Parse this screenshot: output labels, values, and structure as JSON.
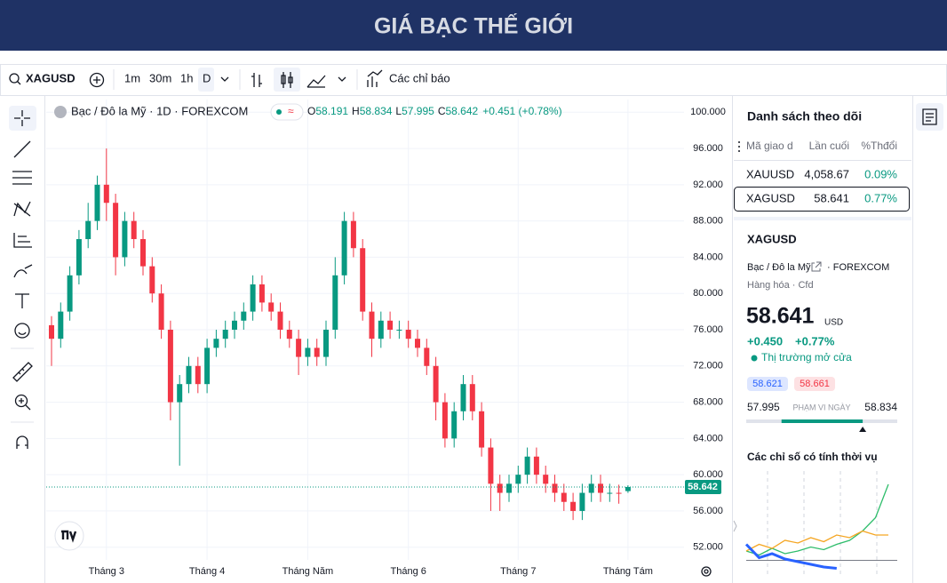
{
  "header": {
    "title": "GIÁ BẠC THẾ GIỚI"
  },
  "toolbar": {
    "symbol": "XAGUSD",
    "intervals": [
      "1m",
      "30m",
      "1h",
      "D"
    ],
    "indicators": "Các chỉ báo"
  },
  "legend": {
    "name": "Bạc / Đô la Mỹ · 1D · FOREXCOM",
    "o": "O",
    "h": "H",
    "l": "L",
    "c": "C",
    "change": "+0.451 (+0.78%)"
  },
  "chart_data": {
    "type": "candlestick",
    "categories": [
      null,
      null,
      null,
      null,
      null,
      null,
      "Tháng 3",
      null,
      null,
      null,
      null,
      null,
      null,
      null,
      null,
      null,
      null,
      "Tháng 4",
      null,
      null,
      null,
      null,
      null,
      null,
      null,
      null,
      null,
      null,
      "Tháng Năm",
      null,
      null,
      null,
      null,
      null,
      null,
      null,
      null,
      null,
      null,
      "Tháng 6",
      null,
      null,
      null,
      null,
      null,
      null,
      null,
      null,
      null,
      null,
      null,
      "Tháng 7",
      null,
      null,
      null,
      null,
      null,
      null,
      null,
      null,
      null,
      null,
      null,
      "Tháng Tám"
    ],
    "open": [
      76.5,
      75,
      78,
      82,
      86,
      88,
      92,
      90,
      84,
      88,
      86,
      83,
      80,
      76,
      68,
      70,
      72,
      70,
      74,
      75,
      76,
      77,
      78,
      81,
      79,
      78,
      76,
      75,
      73,
      74,
      73,
      76,
      82,
      88,
      85,
      78,
      75,
      77,
      76,
      76,
      75,
      74,
      72,
      68,
      64,
      67,
      70,
      67,
      63,
      59,
      58,
      59,
      60,
      62,
      60,
      59,
      58,
      57,
      56,
      58,
      59,
      58,
      58,
      58.191
    ],
    "high": [
      77.5,
      79,
      83,
      87,
      90,
      93,
      96,
      91,
      89,
      89,
      87,
      84,
      81,
      77,
      71,
      73,
      73,
      75,
      76,
      77,
      78,
      79,
      82,
      82,
      80,
      79,
      77,
      76,
      75,
      75,
      77,
      84,
      89,
      89,
      86,
      79,
      78,
      78,
      77,
      77,
      76,
      75,
      73,
      69,
      68,
      71,
      71,
      68,
      64,
      60,
      60,
      61,
      63,
      63,
      61,
      60,
      59,
      58,
      59,
      60,
      60,
      59,
      58.9,
      58.834
    ],
    "low": [
      72,
      74,
      77,
      81,
      85,
      87,
      88,
      82,
      83,
      85,
      82,
      79,
      75,
      66,
      61,
      69,
      69,
      69,
      73,
      74,
      75,
      76,
      77,
      78,
      77,
      75,
      74,
      71,
      72,
      72,
      72,
      75,
      81,
      84,
      77,
      73,
      74,
      75,
      75,
      74,
      73,
      71,
      66,
      63,
      63,
      66,
      66,
      62,
      56,
      56,
      57,
      58,
      59,
      59,
      58,
      57,
      56,
      55,
      55,
      57,
      57,
      57,
      56.8,
      57.995
    ],
    "close": [
      75,
      78,
      82,
      86,
      88,
      92,
      90,
      84,
      88,
      86,
      83,
      80,
      76,
      68,
      70,
      72,
      70,
      74,
      75,
      76,
      77,
      78,
      81,
      79,
      78,
      76,
      75,
      73,
      74,
      73,
      76,
      82,
      88,
      85,
      78,
      75,
      77,
      76,
      76,
      75,
      74,
      72,
      68,
      64,
      67,
      70,
      67,
      63,
      59,
      58,
      59,
      60,
      62,
      60,
      59,
      58,
      57,
      56,
      58,
      59,
      58,
      58,
      57.9,
      58.642
    ],
    "up_color": "#089981",
    "down_color": "#f23645",
    "ylim": [
      50.6,
      101.4
    ],
    "yticks": [
      {
        "value": 52,
        "label": "52.000"
      },
      {
        "value": 56,
        "label": "56.000"
      },
      {
        "value": 60,
        "label": "60.000"
      },
      {
        "value": 64,
        "label": "64.000"
      },
      {
        "value": 68,
        "label": "68.000"
      },
      {
        "value": 72,
        "label": "72.000"
      },
      {
        "value": 76,
        "label": "76.000"
      },
      {
        "value": 80,
        "label": "80.000"
      },
      {
        "value": 84,
        "label": "84.000"
      },
      {
        "value": 88,
        "label": "88.000"
      },
      {
        "value": 92,
        "label": "92.000"
      },
      {
        "value": 96,
        "label": "96.000"
      },
      {
        "value": 100,
        "label": "100.000"
      }
    ],
    "grid": true
  },
  "watchlist": {
    "title": "Danh sách theo dõi",
    "columns": [
      "Mã giao d",
      "Lần cuối",
      "%Thđổi"
    ],
    "rows": [
      [
        "XAUUSD",
        "4,058.67",
        "0.09%"
      ],
      [
        "XAGUSD",
        "58.641",
        "0.77%"
      ]
    ]
  },
  "details": {
    "symbol": "XAGUSD",
    "name": "Bạc / Đô la Mỹ",
    "exchange": "· FOREXCOM",
    "kind": "Hàng hóa · Cfd",
    "price": "58.641",
    "currency": "USD",
    "change": "+0.450",
    "change_pct": "+0.77%",
    "status": "Thị trường mở cửa",
    "bid": "58.621",
    "ask": "58.661",
    "range_label": "PHẠM VI NGÀY"
  },
  "seasonal": {
    "title": "Các chỉ số có tính thời vụ",
    "type": "line",
    "ylim": [
      -20,
      60
    ],
    "series": [
      {
        "color": "#2ebd6b",
        "values": [
          0,
          -3,
          2,
          -2,
          0,
          3,
          1,
          5,
          8,
          15,
          25,
          50
        ]
      },
      {
        "color": "#f5a623",
        "values": [
          0,
          5,
          2,
          8,
          6,
          10,
          7,
          12,
          10,
          15,
          12,
          12
        ]
      },
      {
        "color": "#2962ff",
        "values": [
          5,
          -5,
          -2,
          -6,
          -8,
          -10,
          -12,
          -13,
          null,
          null,
          null,
          null
        ]
      }
    ]
  }
}
